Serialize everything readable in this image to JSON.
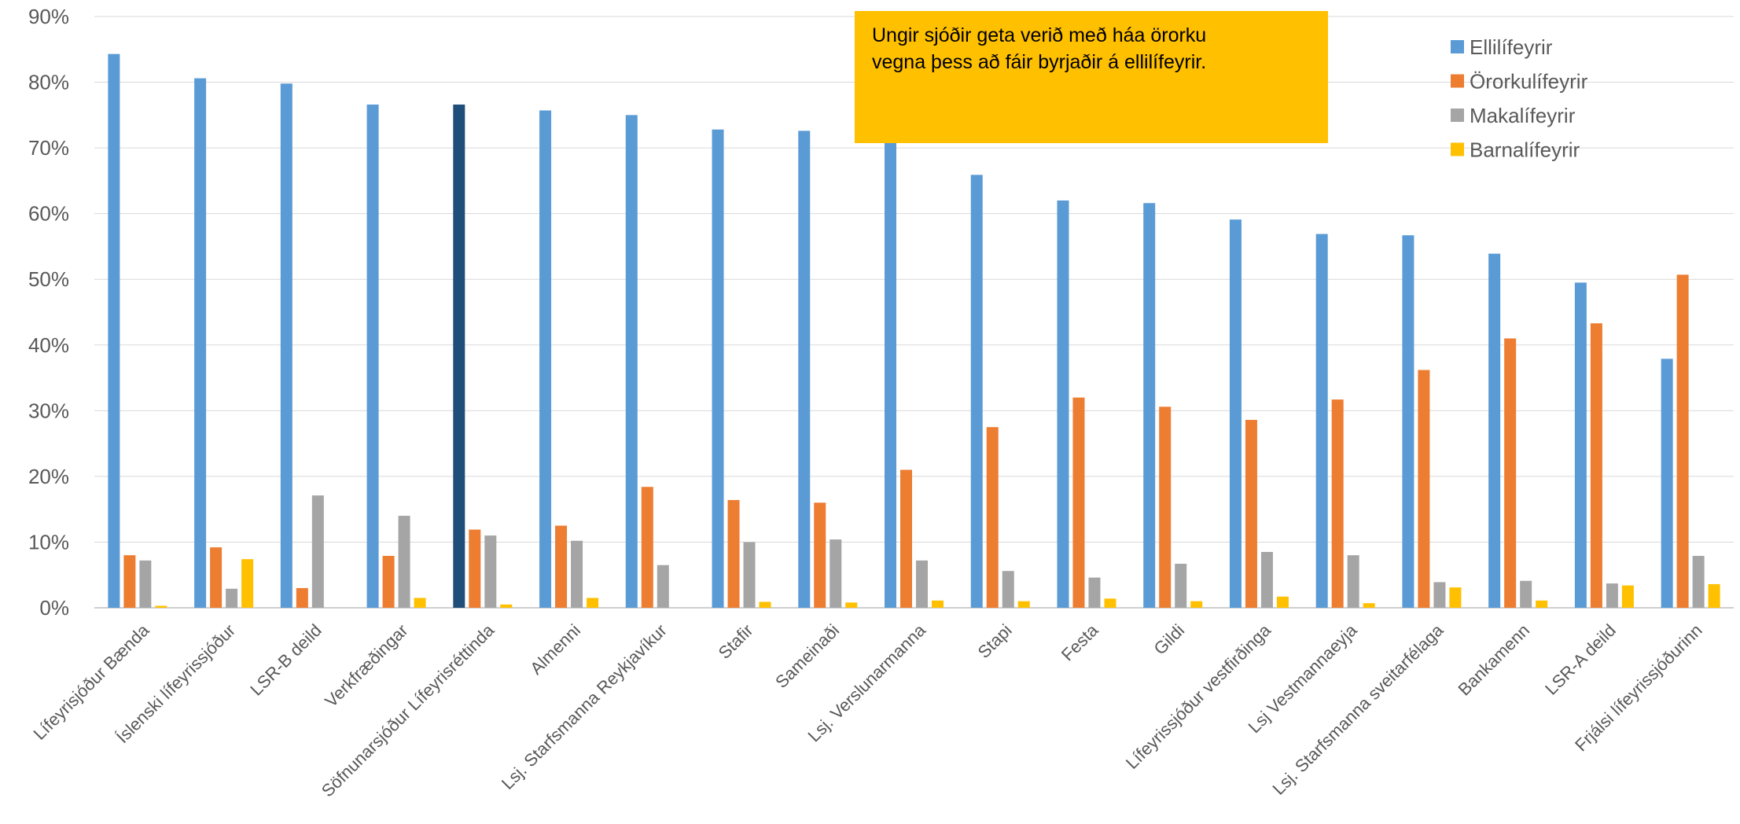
{
  "chart_data": {
    "type": "bar",
    "categories": [
      "Lífeyrisjóður Bænda",
      "Íslenski lífeyrissjóður",
      "LSR-B deild",
      "Verkfræðingar",
      "Söfnunarsjóður Lífeyrisréttinda",
      "Almenni",
      "Lsj. Starfsmanna Reykjavíkur",
      "Stafir",
      "Sameinaði",
      "Lsj. Verslunarmanna",
      "Stapi",
      "Festa",
      "Gildi",
      "Lífeyrissjóður vestfirðinga",
      "Lsj Vestmannaeyja",
      "Lsj. Starfsmanna sveitarfélaga",
      "Bankamenn",
      "LSR-A deild",
      "Frjálsi lífeyrissjóðurinn"
    ],
    "series": [
      {
        "name": "Ellilífeyrir",
        "color": "#5B9BD5",
        "values": [
          84.3,
          80.6,
          79.8,
          76.6,
          76.6,
          75.7,
          75.0,
          72.8,
          72.6,
          70.8,
          65.9,
          62.0,
          61.6,
          59.1,
          56.9,
          56.7,
          53.9,
          49.5,
          37.9
        ]
      },
      {
        "name": "Örorkulífeyrir",
        "color": "#ED7D31",
        "values": [
          8.0,
          9.2,
          3.0,
          7.9,
          11.9,
          12.5,
          18.4,
          16.4,
          16.0,
          21.0,
          27.5,
          32.0,
          30.6,
          28.6,
          31.7,
          36.2,
          41.0,
          43.3,
          50.7
        ]
      },
      {
        "name": "Makalífeyrir",
        "color": "#A5A5A5",
        "values": [
          7.2,
          2.9,
          17.1,
          14.0,
          11.0,
          10.2,
          6.5,
          10.0,
          10.4,
          7.2,
          5.6,
          4.6,
          6.7,
          8.5,
          8.0,
          3.9,
          4.1,
          3.7,
          7.9
        ]
      },
      {
        "name": "Barnalífeyrir",
        "color": "#FFC000",
        "values": [
          0.3,
          7.4,
          0.0,
          1.5,
          0.5,
          1.5,
          0.0,
          0.9,
          0.8,
          1.1,
          1.0,
          1.4,
          1.0,
          1.7,
          0.7,
          3.1,
          1.1,
          3.4,
          3.6
        ]
      }
    ],
    "highlight": {
      "category_index": 4,
      "series_index": 0,
      "color": "#1F4E79"
    },
    "yticks": [
      "0%",
      "10%",
      "20%",
      "30%",
      "40%",
      "50%",
      "60%",
      "70%",
      "80%",
      "90%"
    ],
    "ylim": [
      0,
      90
    ],
    "grid": true,
    "legend": "top-right",
    "title": "",
    "xlabel": "",
    "ylabel": ""
  },
  "annotation": {
    "lines": [
      "Ungir sjóðir geta verið með háa örorku",
      "vegna þess að fáir byrjaðir á ellilífeyrir."
    ],
    "background": "#FFC000"
  }
}
